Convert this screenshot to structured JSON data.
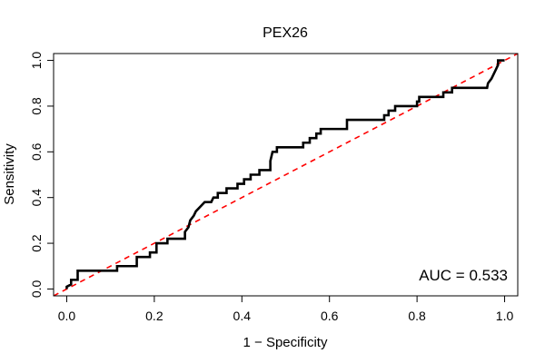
{
  "chart_data": {
    "type": "line",
    "title": "PEX26",
    "xlabel": "1 − Specificity",
    "ylabel": "Sensitivity",
    "xlim": [
      -0.03,
      1.03
    ],
    "ylim": [
      -0.03,
      1.03
    ],
    "xticks": [
      "0.0",
      "0.2",
      "0.4",
      "0.6",
      "0.8",
      "1.0"
    ],
    "yticks": [
      "0.0",
      "0.2",
      "0.4",
      "0.6",
      "0.8",
      "1.0"
    ],
    "grid": false,
    "annotation": "AUC = 0.533",
    "colors": {
      "roc": "#000000",
      "reference": "#ff0000"
    },
    "series": [
      {
        "values": [
          [
            0.0,
            0.0
          ],
          [
            0.0,
            0.01
          ],
          [
            0.01,
            0.02
          ],
          [
            0.01,
            0.04
          ],
          [
            0.025,
            0.04
          ],
          [
            0.025,
            0.08
          ],
          [
            0.115,
            0.08
          ],
          [
            0.115,
            0.1
          ],
          [
            0.16,
            0.1
          ],
          [
            0.16,
            0.14
          ],
          [
            0.19,
            0.14
          ],
          [
            0.19,
            0.16
          ],
          [
            0.205,
            0.16
          ],
          [
            0.205,
            0.2
          ],
          [
            0.23,
            0.2
          ],
          [
            0.23,
            0.22
          ],
          [
            0.27,
            0.22
          ],
          [
            0.27,
            0.25
          ],
          [
            0.278,
            0.27
          ],
          [
            0.282,
            0.3
          ],
          [
            0.29,
            0.32
          ],
          [
            0.295,
            0.34
          ],
          [
            0.305,
            0.36
          ],
          [
            0.315,
            0.38
          ],
          [
            0.33,
            0.38
          ],
          [
            0.335,
            0.4
          ],
          [
            0.345,
            0.4
          ],
          [
            0.345,
            0.42
          ],
          [
            0.365,
            0.42
          ],
          [
            0.365,
            0.44
          ],
          [
            0.39,
            0.44
          ],
          [
            0.39,
            0.46
          ],
          [
            0.405,
            0.46
          ],
          [
            0.405,
            0.48
          ],
          [
            0.42,
            0.48
          ],
          [
            0.42,
            0.5
          ],
          [
            0.44,
            0.5
          ],
          [
            0.44,
            0.52
          ],
          [
            0.465,
            0.52
          ],
          [
            0.465,
            0.56
          ],
          [
            0.47,
            0.6
          ],
          [
            0.48,
            0.6
          ],
          [
            0.48,
            0.62
          ],
          [
            0.54,
            0.62
          ],
          [
            0.54,
            0.64
          ],
          [
            0.555,
            0.64
          ],
          [
            0.555,
            0.66
          ],
          [
            0.57,
            0.66
          ],
          [
            0.57,
            0.68
          ],
          [
            0.58,
            0.68
          ],
          [
            0.58,
            0.7
          ],
          [
            0.64,
            0.7
          ],
          [
            0.64,
            0.74
          ],
          [
            0.725,
            0.74
          ],
          [
            0.725,
            0.76
          ],
          [
            0.735,
            0.76
          ],
          [
            0.735,
            0.78
          ],
          [
            0.75,
            0.78
          ],
          [
            0.75,
            0.8
          ],
          [
            0.8,
            0.8
          ],
          [
            0.8,
            0.82
          ],
          [
            0.805,
            0.82
          ],
          [
            0.805,
            0.84
          ],
          [
            0.86,
            0.84
          ],
          [
            0.86,
            0.86
          ],
          [
            0.88,
            0.86
          ],
          [
            0.88,
            0.88
          ],
          [
            0.96,
            0.88
          ],
          [
            0.962,
            0.9
          ],
          [
            0.97,
            0.92
          ],
          [
            0.975,
            0.94
          ],
          [
            0.98,
            0.96
          ],
          [
            0.985,
            0.98
          ],
          [
            0.985,
            1.0
          ],
          [
            1.0,
            1.0
          ]
        ]
      },
      {
        "values": [
          [
            0.0,
            0.0
          ],
          [
            1.0,
            1.0
          ]
        ]
      }
    ]
  }
}
